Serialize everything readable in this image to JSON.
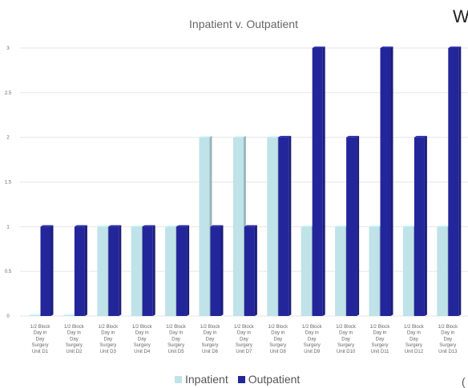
{
  "chart_data": {
    "type": "bar",
    "title": "Inpatient v. Outpatient",
    "partial_text": {
      "top_right": "W",
      "bottom_right": "("
    },
    "xlabel": "",
    "ylabel": "",
    "ylim": [
      0,
      3
    ],
    "yticks": [
      "0",
      "0.5",
      "1",
      "1.5",
      "2",
      "2.5",
      "3"
    ],
    "grid": true,
    "legend_position": "bottom",
    "categories": [
      [
        "1/2 Block",
        "Day in",
        "Day",
        "Surgery",
        "Unit D1"
      ],
      [
        "1/2 Block",
        "Day in",
        "Day",
        "Surgery",
        "Unit D2"
      ],
      [
        "1/2 Block",
        "Day in",
        "Day",
        "Surgery",
        "Unit D3"
      ],
      [
        "1/2 Block",
        "Day in",
        "Day",
        "Surgery",
        "Unit D4"
      ],
      [
        "1/2 Block",
        "Day in",
        "Day",
        "Surgery",
        "Unit D5"
      ],
      [
        "1/2 Block",
        "Day in",
        "Day",
        "Surgery",
        "Unit D6"
      ],
      [
        "1/2 Block",
        "Day in",
        "Day",
        "Surgery",
        "Unit D7"
      ],
      [
        "1/2 Block",
        "Day in",
        "Day",
        "Surgery",
        "Unit D8"
      ],
      [
        "1/2 Block",
        "Day in",
        "Day",
        "Surgery",
        "Unit D9"
      ],
      [
        "1/2 Block",
        "Day in",
        "Day",
        "Surgery",
        "Unit D10"
      ],
      [
        "1/2 Block",
        "Day in",
        "Day",
        "Surgery",
        "Unit D11"
      ],
      [
        "1/2 Block",
        "Day in",
        "Day",
        "Surgery",
        "Unit D12"
      ],
      [
        "1/2 Block",
        "Day in",
        "Day",
        "Surgery",
        "Unit D13"
      ]
    ],
    "series": [
      {
        "name": "Inpatient",
        "color": "#bfe3e8",
        "values": [
          0,
          0,
          1,
          1,
          1,
          2,
          2,
          2,
          1,
          1,
          1,
          1,
          1
        ]
      },
      {
        "name": "Outpatient",
        "color": "#23269a",
        "values": [
          1,
          1,
          1,
          1,
          1,
          1,
          1,
          2,
          3,
          2,
          3,
          2,
          3
        ]
      }
    ]
  }
}
